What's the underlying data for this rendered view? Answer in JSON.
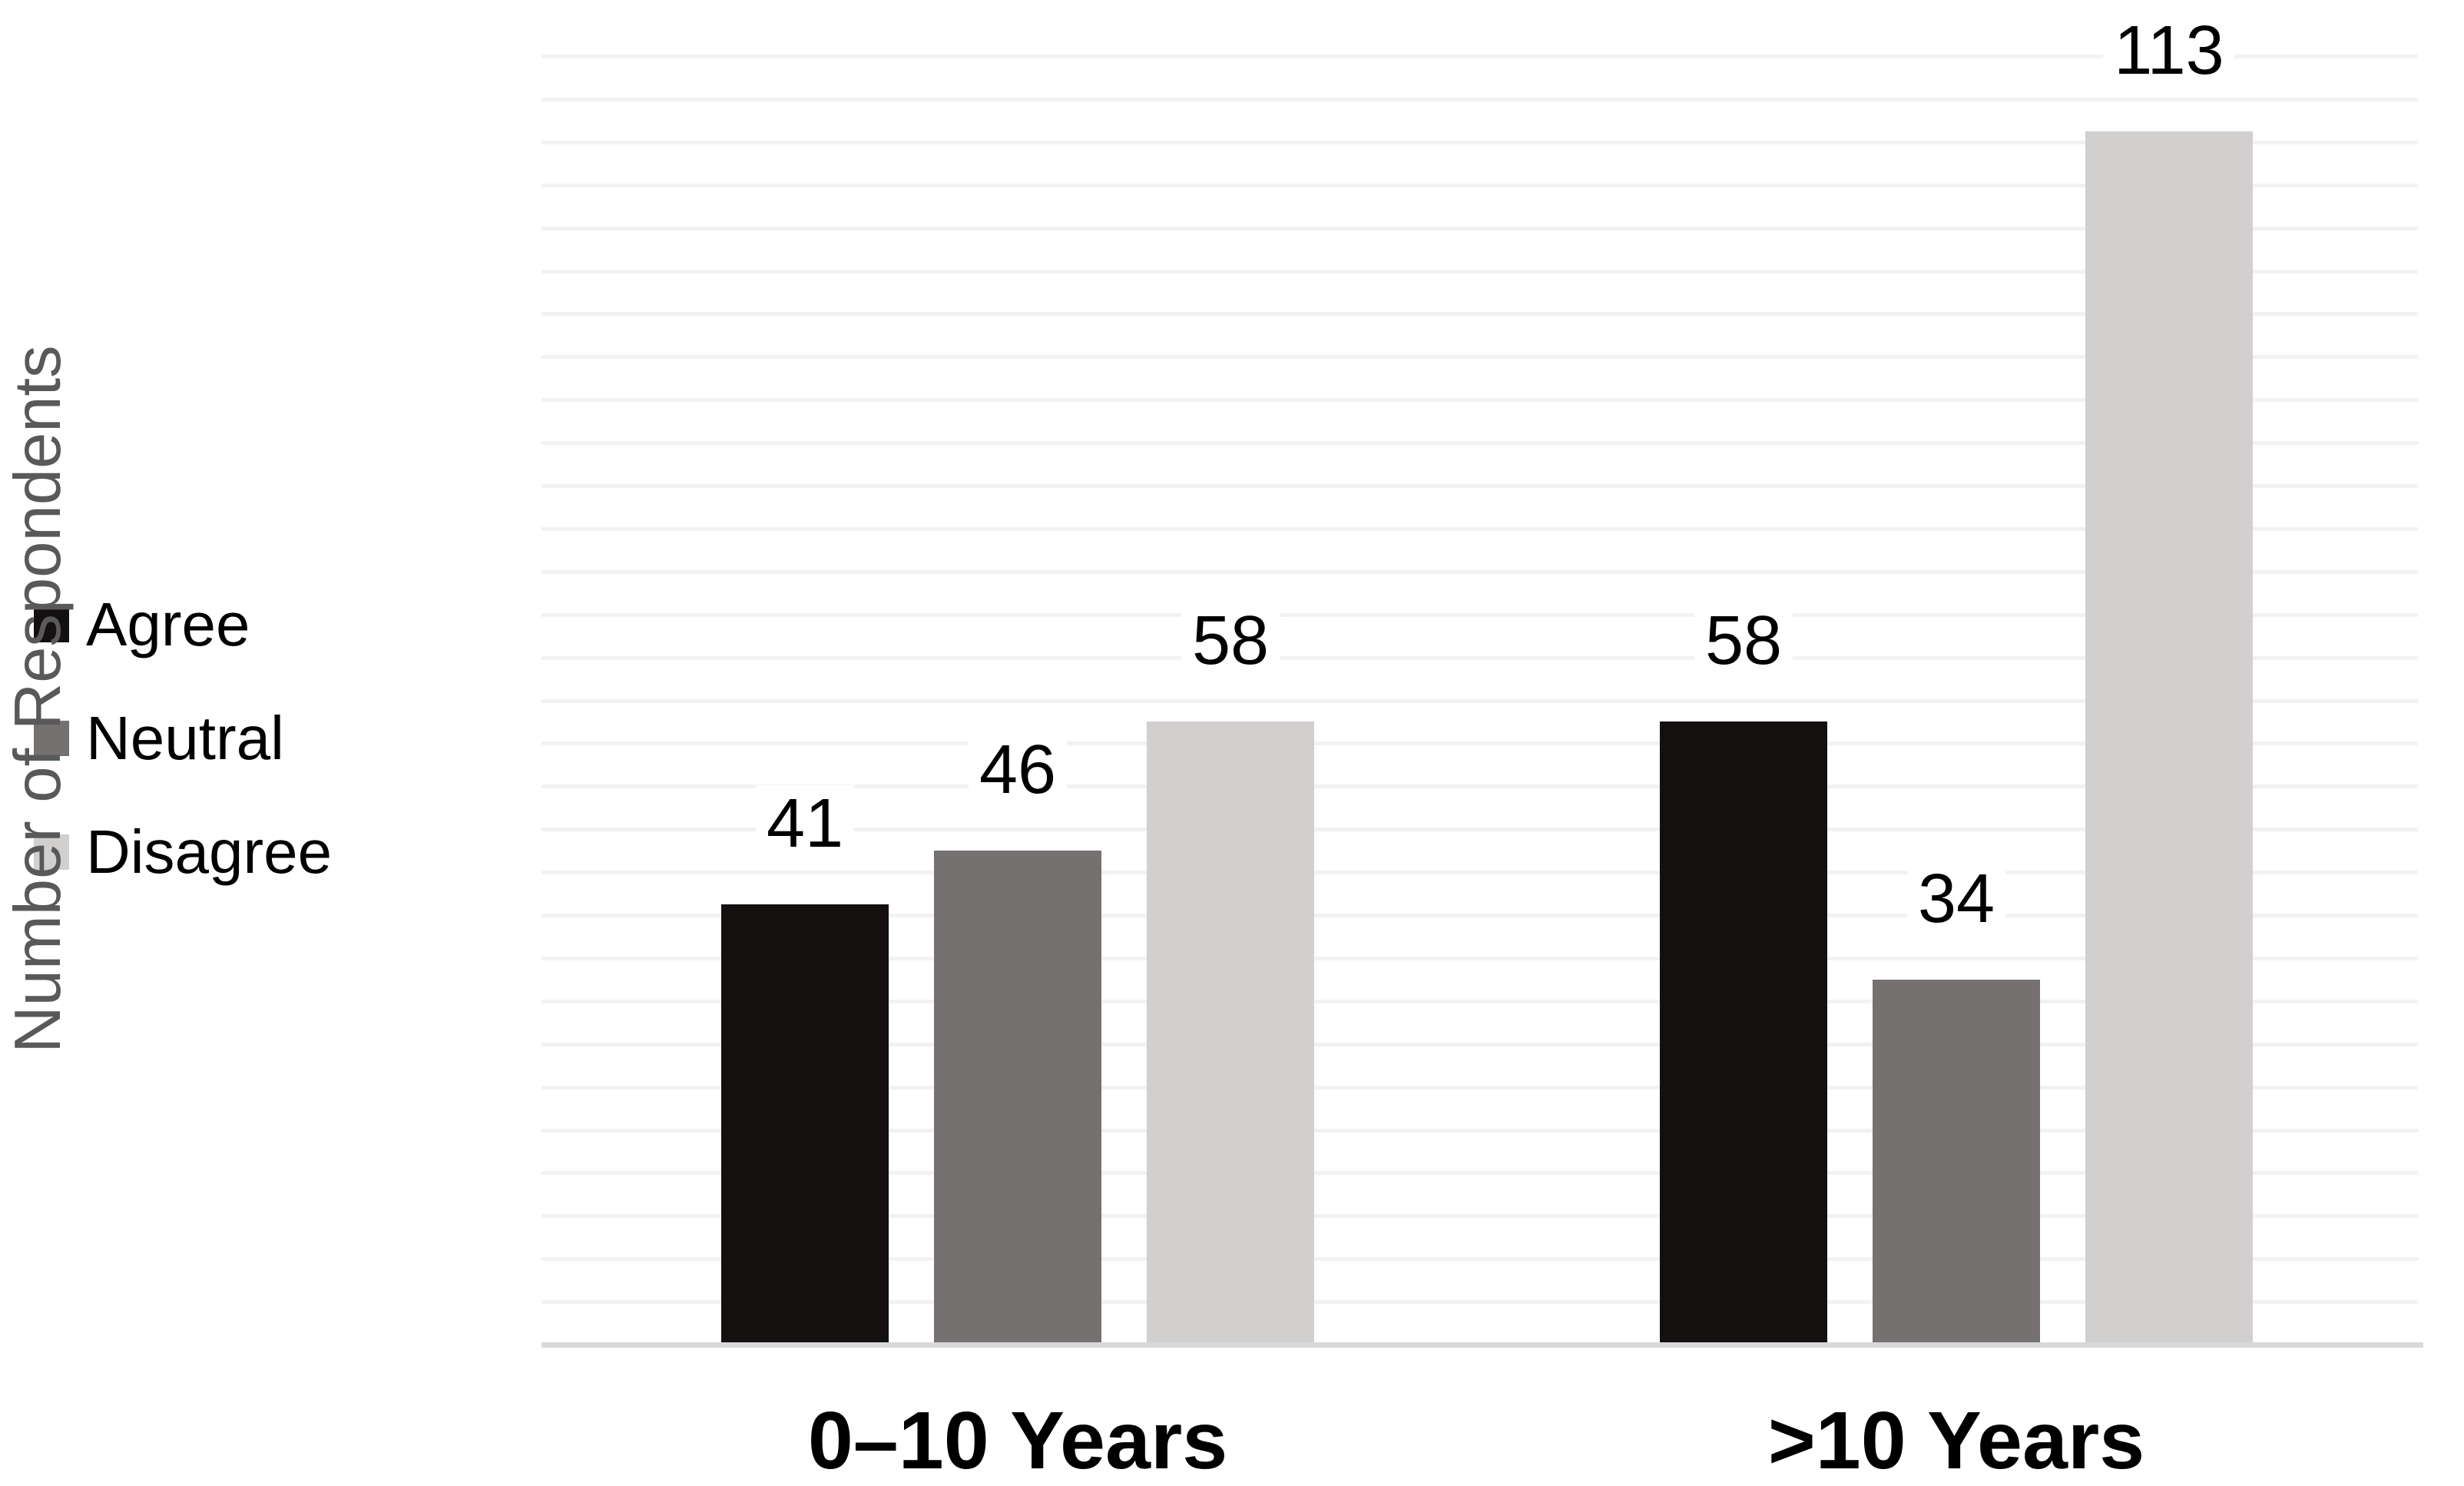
{
  "chart_data": {
    "type": "bar",
    "categories": [
      "0–10 Years",
      ">10 Years"
    ],
    "series": [
      {
        "name": "Agree",
        "color": "#141010",
        "values": [
          41,
          58
        ]
      },
      {
        "name": "Neutral",
        "color": "#767171",
        "values": [
          46,
          34
        ]
      },
      {
        "name": "Disagree",
        "color": "#d2cfcf",
        "values": [
          58,
          113
        ]
      }
    ],
    "title": "",
    "xlabel": "",
    "ylabel": "Number of Respondents",
    "ylim": [
      0,
      120
    ],
    "gridline_step": 4,
    "grid": "horizontal",
    "y_tick_labels_shown": false,
    "legend_position": "left",
    "data_labels": [
      [
        "41",
        "46",
        "58"
      ],
      [
        "58",
        "34",
        "113"
      ]
    ]
  },
  "colors": {
    "background": "#ffffff",
    "gridline": "#f2f2f2",
    "axis_line": "#d9d9d9",
    "y_axis_title_text": "#595959",
    "label_text": "#000000"
  }
}
